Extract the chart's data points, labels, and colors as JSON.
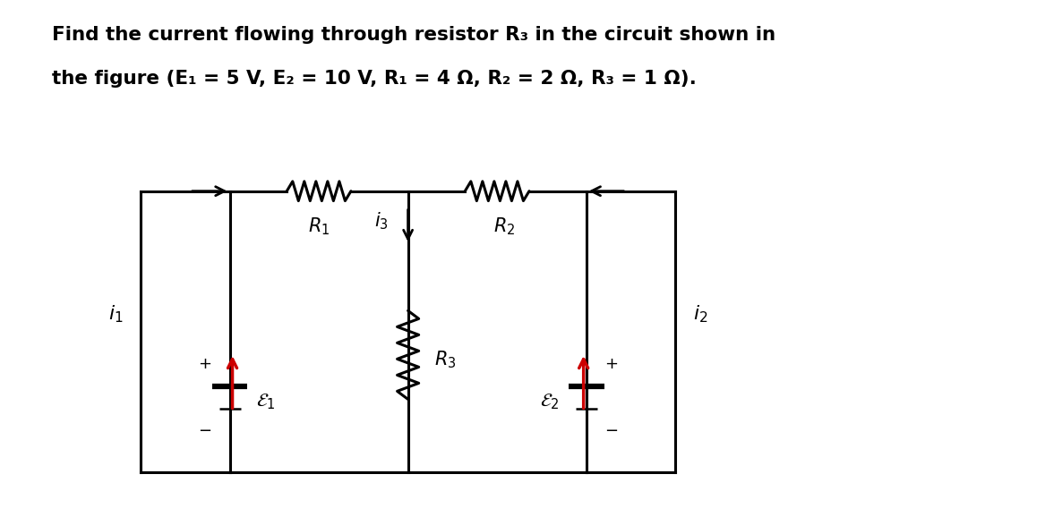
{
  "title_line1": "Find the current flowing through resistor R₃ in the circuit shown in",
  "title_line2": "the figure (E₁ = 5 V, E₂ = 10 V, R₁ = 4 Ω, R₂ = 2 Ω, R₃ = 1 Ω).",
  "bg_color": "#ffffff",
  "text_color": "#000000",
  "red_color": "#cc0000",
  "font_size_title": 15.5,
  "circuit_lw": 2.2,
  "batt_long_lw": 4.5,
  "batt_short_lw": 1.8,
  "batt_long_half": 0.2,
  "batt_short_half": 0.12,
  "resistor_amp": 0.11,
  "resistor_n": 5
}
